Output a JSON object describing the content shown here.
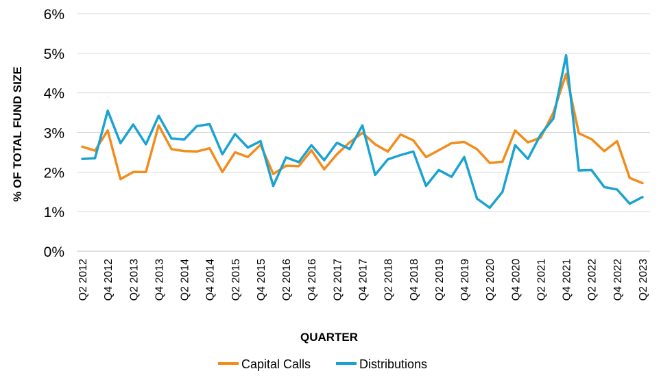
{
  "chart_data": {
    "type": "line",
    "title": "",
    "xlabel": "QUARTER",
    "ylabel": "% OF TOTAL FUND SIZE",
    "ylim": [
      0,
      6
    ],
    "yticks": [
      "0%",
      "1%",
      "2%",
      "3%",
      "4%",
      "5%",
      "6%"
    ],
    "grid": true,
    "legend_position": "bottom",
    "x": [
      "Q2 2012",
      "Q3 2012",
      "Q4 2012",
      "Q1 2013",
      "Q2 2013",
      "Q3 2013",
      "Q4 2013",
      "Q1 2014",
      "Q2 2014",
      "Q3 2014",
      "Q4 2014",
      "Q1 2015",
      "Q2 2015",
      "Q3 2015",
      "Q4 2015",
      "Q1 2016",
      "Q2 2016",
      "Q3 2016",
      "Q4 2016",
      "Q1 2017",
      "Q2 2017",
      "Q3 2017",
      "Q4 2017",
      "Q1 2018",
      "Q2 2018",
      "Q3 2018",
      "Q4 2018",
      "Q1 2019",
      "Q2 2019",
      "Q3 2019",
      "Q4 2019",
      "Q1 2020",
      "Q2 2020",
      "Q3 2020",
      "Q4 2020",
      "Q1 2021",
      "Q2 2021",
      "Q3 2021",
      "Q4 2021",
      "Q1 2022",
      "Q2 2022",
      "Q3 2022",
      "Q4 2022",
      "Q1 2023",
      "Q2 2023"
    ],
    "x_tick_labels": [
      "Q2 2012",
      "Q4 2012",
      "Q2 2013",
      "Q4 2013",
      "Q2 2014",
      "Q4 2014",
      "Q2 2015",
      "Q4 2015",
      "Q2 2016",
      "Q4 2016",
      "Q2 2017",
      "Q4 2017",
      "Q2 2018",
      "Q4 2018",
      "Q2 2019",
      "Q4 2019",
      "Q2 2020",
      "Q4 2020",
      "Q2 2021",
      "Q4 2021",
      "Q2 2022",
      "Q4 2022",
      "Q2 2023"
    ],
    "series": [
      {
        "name": "Capital Calls",
        "color": "#f28c1c",
        "values": [
          2.64,
          2.54,
          3.05,
          1.82,
          2.0,
          2.0,
          3.18,
          2.58,
          2.53,
          2.52,
          2.6,
          2.0,
          2.5,
          2.38,
          2.69,
          1.95,
          2.16,
          2.15,
          2.55,
          2.07,
          2.45,
          2.75,
          2.99,
          2.7,
          2.52,
          2.95,
          2.8,
          2.38,
          2.55,
          2.73,
          2.76,
          2.58,
          2.23,
          2.26,
          3.05,
          2.75,
          2.87,
          3.5,
          4.48,
          2.98,
          2.83,
          2.53,
          2.78,
          1.85,
          1.72
        ]
      },
      {
        "name": "Distributions",
        "color": "#1aa3d2",
        "values": [
          2.33,
          2.35,
          3.55,
          2.73,
          3.2,
          2.7,
          3.42,
          2.85,
          2.82,
          3.16,
          3.21,
          2.45,
          2.96,
          2.62,
          2.78,
          1.65,
          2.37,
          2.25,
          2.68,
          2.3,
          2.74,
          2.58,
          3.18,
          1.93,
          2.32,
          2.43,
          2.52,
          1.65,
          2.05,
          1.88,
          2.38,
          1.33,
          1.1,
          1.5,
          2.68,
          2.33,
          2.95,
          3.35,
          4.95,
          2.04,
          2.05,
          1.62,
          1.56,
          1.2,
          1.37
        ]
      }
    ]
  }
}
